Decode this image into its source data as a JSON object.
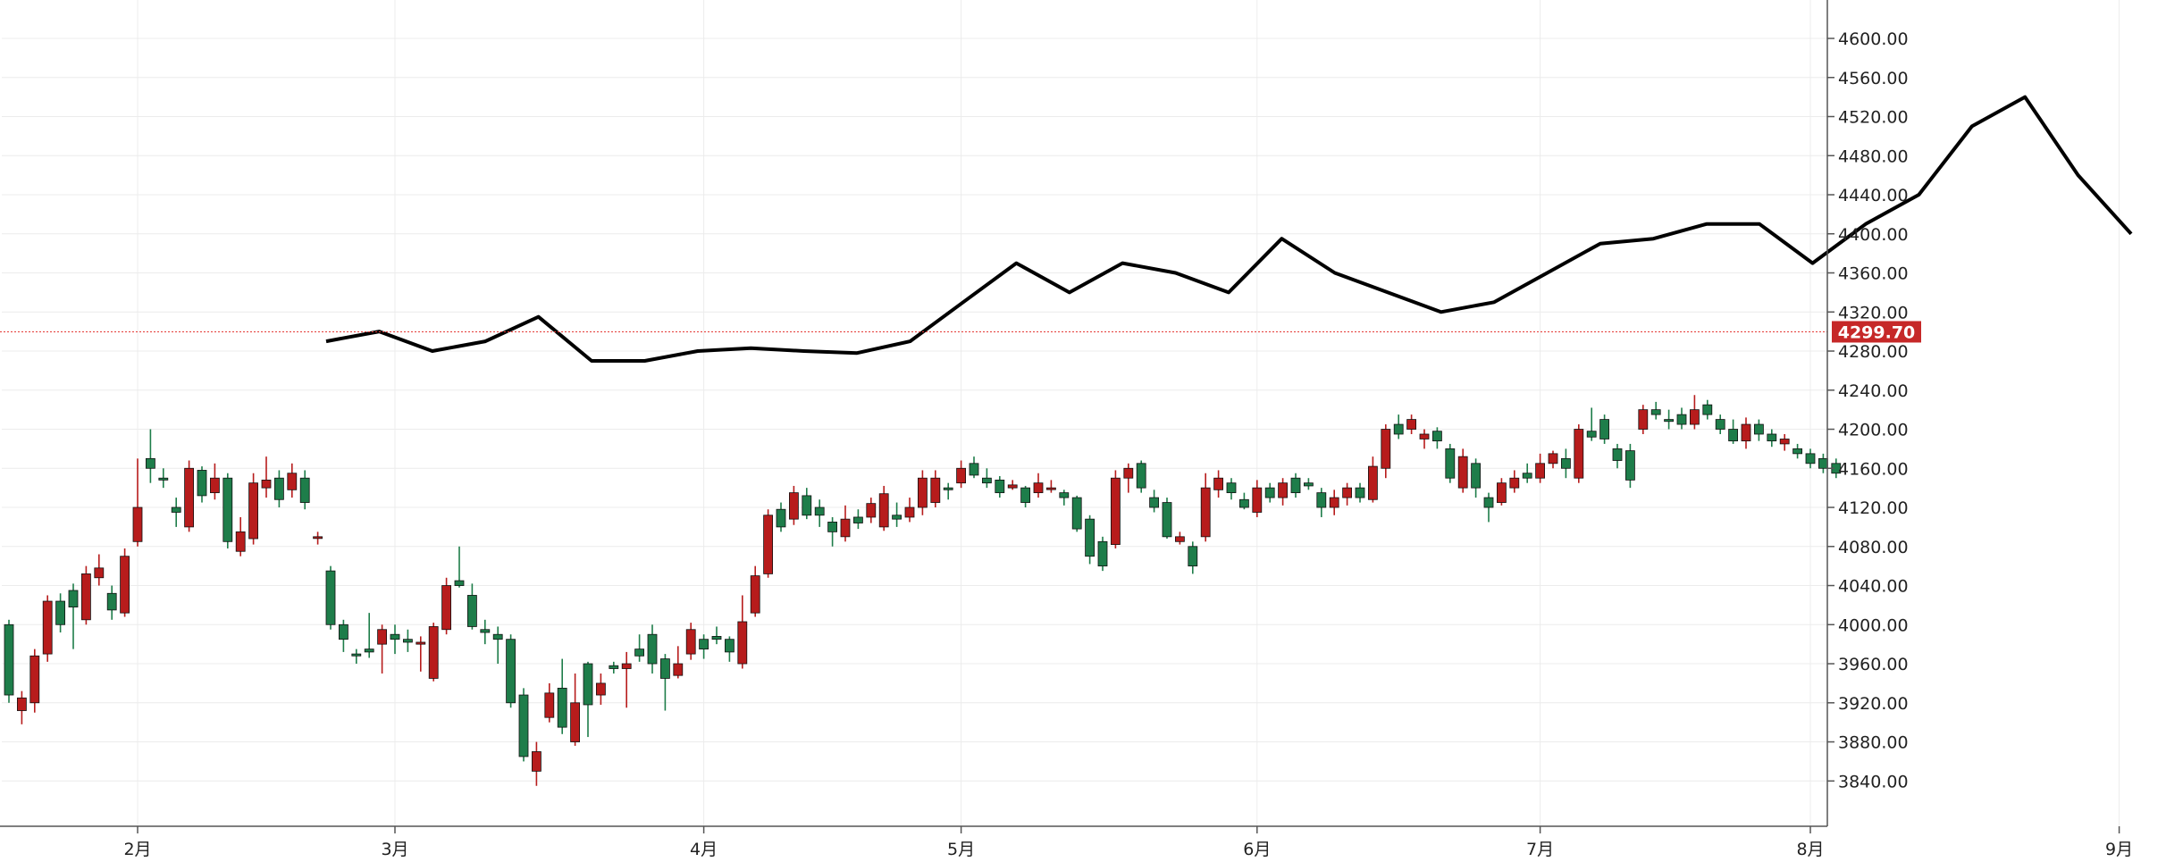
{
  "chart_data": {
    "type": "candlestick",
    "colors": {
      "up": "#b71c1c",
      "down": "#1e7d4a",
      "line": "#000000",
      "current_line": "#e53935",
      "current_badge": "#c62828",
      "grid": "#ececec"
    },
    "grid": true,
    "y_axis_position": "right",
    "ylim": [
      3790,
      4640
    ],
    "y_ticks": [
      3840,
      3880,
      3920,
      3960,
      4000,
      4040,
      4080,
      4120,
      4160,
      4200,
      4240,
      4280,
      4320,
      4360,
      4400,
      4440,
      4480,
      4520,
      4560,
      4600
    ],
    "y_tick_labels": [
      "3840.00",
      "3880.00",
      "3920.00",
      "3960.00",
      "4000.00",
      "4040.00",
      "4080.00",
      "4120.00",
      "4160.00",
      "4200.00",
      "4240.00",
      "4280.00",
      "4320.00",
      "4360.00",
      "4400.00",
      "4440.00",
      "4480.00",
      "4520.00",
      "4560.00",
      "4600.00"
    ],
    "x_ticks": [
      {
        "label": "2月",
        "pos": 10
      },
      {
        "label": "3月",
        "pos": 30
      },
      {
        "label": "4月",
        "pos": 54
      },
      {
        "label": "5月",
        "pos": 74
      },
      {
        "label": "6月",
        "pos": 97
      },
      {
        "label": "7月",
        "pos": 119
      },
      {
        "label": "8月",
        "pos": 140
      },
      {
        "label": "9月",
        "pos": 164
      }
    ],
    "current_value": 4299.7,
    "current_label": "4299.70",
    "candles": [
      [
        4000,
        3928,
        4005,
        3920
      ],
      [
        3912,
        3925,
        3932,
        3898
      ],
      [
        3920,
        3968,
        3975,
        3910
      ],
      [
        3970,
        4024,
        4030,
        3962
      ],
      [
        4024,
        4000,
        4032,
        3992
      ],
      [
        4035,
        4018,
        4042,
        3975
      ],
      [
        4005,
        4052,
        4060,
        4000
      ],
      [
        4048,
        4058,
        4072,
        4040
      ],
      [
        4032,
        4015,
        4040,
        4005
      ],
      [
        4012,
        4070,
        4078,
        4008
      ],
      [
        4085,
        4120,
        4170,
        4080
      ],
      [
        4170,
        4160,
        4200,
        4145
      ],
      [
        4150,
        4148,
        4160,
        4140
      ],
      [
        4120,
        4115,
        4130,
        4100
      ],
      [
        4100,
        4160,
        4168,
        4095
      ],
      [
        4158,
        4132,
        4162,
        4125
      ],
      [
        4135,
        4150,
        4165,
        4128
      ],
      [
        4150,
        4085,
        4155,
        4078
      ],
      [
        4075,
        4095,
        4110,
        4070
      ],
      [
        4088,
        4145,
        4155,
        4082
      ],
      [
        4140,
        4148,
        4172,
        4130
      ],
      [
        4150,
        4128,
        4158,
        4120
      ],
      [
        4138,
        4155,
        4165,
        4130
      ],
      [
        4150,
        4125,
        4158,
        4118
      ],
      [
        4090,
        4090,
        4095,
        4082
      ],
      [
        4055,
        4000,
        4060,
        3995
      ],
      [
        4000,
        3985,
        4005,
        3972
      ],
      [
        3970,
        3968,
        3975,
        3960
      ],
      [
        3975,
        3972,
        4012,
        3966
      ],
      [
        3980,
        3995,
        4000,
        3950
      ],
      [
        3990,
        3985,
        4000,
        3970
      ],
      [
        3985,
        3982,
        3995,
        3972
      ],
      [
        3980,
        3982,
        3988,
        3952
      ],
      [
        3945,
        3998,
        4002,
        3942
      ],
      [
        3995,
        4040,
        4048,
        3990
      ],
      [
        4045,
        4040,
        4080,
        4038
      ],
      [
        4030,
        3998,
        4042,
        3995
      ],
      [
        3995,
        3992,
        4005,
        3980
      ],
      [
        3990,
        3985,
        3998,
        3960
      ],
      [
        3985,
        3920,
        3990,
        3915
      ],
      [
        3928,
        3865,
        3935,
        3860
      ],
      [
        3850,
        3870,
        3880,
        3835
      ],
      [
        3905,
        3930,
        3940,
        3900
      ],
      [
        3935,
        3895,
        3965,
        3888
      ],
      [
        3880,
        3920,
        3950,
        3876
      ],
      [
        3960,
        3918,
        3962,
        3885
      ],
      [
        3928,
        3940,
        3950,
        3918
      ],
      [
        3958,
        3955,
        3962,
        3950
      ],
      [
        3955,
        3960,
        3972,
        3915
      ],
      [
        3975,
        3968,
        3990,
        3962
      ],
      [
        3990,
        3960,
        4000,
        3950
      ],
      [
        3965,
        3945,
        3970,
        3912
      ],
      [
        3948,
        3960,
        3978,
        3945
      ],
      [
        3970,
        3995,
        4002,
        3964
      ],
      [
        3985,
        3975,
        3990,
        3965
      ],
      [
        3988,
        3985,
        3998,
        3980
      ],
      [
        3985,
        3972,
        3988,
        3962
      ],
      [
        3960,
        4003,
        4030,
        3955
      ],
      [
        4012,
        4050,
        4060,
        4008
      ],
      [
        4052,
        4112,
        4118,
        4048
      ],
      [
        4118,
        4100,
        4125,
        4095
      ],
      [
        4108,
        4135,
        4142,
        4102
      ],
      [
        4132,
        4112,
        4140,
        4108
      ],
      [
        4120,
        4112,
        4128,
        4100
      ],
      [
        4105,
        4095,
        4110,
        4080
      ],
      [
        4090,
        4108,
        4122,
        4085
      ],
      [
        4110,
        4104,
        4118,
        4098
      ],
      [
        4110,
        4124,
        4130,
        4104
      ],
      [
        4100,
        4134,
        4142,
        4096
      ],
      [
        4112,
        4108,
        4125,
        4100
      ],
      [
        4110,
        4120,
        4130,
        4105
      ],
      [
        4120,
        4150,
        4158,
        4112
      ],
      [
        4125,
        4150,
        4158,
        4120
      ],
      [
        4140,
        4138,
        4145,
        4128
      ],
      [
        4145,
        4160,
        4168,
        4140
      ],
      [
        4165,
        4153,
        4172,
        4150
      ],
      [
        4150,
        4145,
        4160,
        4140
      ],
      [
        4148,
        4135,
        4152,
        4130
      ],
      [
        4140,
        4143,
        4148,
        4138
      ],
      [
        4140,
        4125,
        4142,
        4120
      ],
      [
        4135,
        4145,
        4155,
        4130
      ],
      [
        4140,
        4140,
        4148,
        4135
      ],
      [
        4135,
        4130,
        4138,
        4122
      ],
      [
        4130,
        4098,
        4132,
        4095
      ],
      [
        4108,
        4070,
        4112,
        4062
      ],
      [
        4085,
        4060,
        4090,
        4055
      ],
      [
        4082,
        4150,
        4158,
        4078
      ],
      [
        4150,
        4160,
        4165,
        4135
      ],
      [
        4165,
        4140,
        4168,
        4135
      ],
      [
        4130,
        4120,
        4138,
        4115
      ],
      [
        4125,
        4090,
        4130,
        4088
      ],
      [
        4085,
        4090,
        4095,
        4082
      ],
      [
        4080,
        4060,
        4085,
        4052
      ],
      [
        4090,
        4140,
        4155,
        4085
      ],
      [
        4138,
        4150,
        4158,
        4130
      ],
      [
        4145,
        4135,
        4150,
        4128
      ],
      [
        4128,
        4120,
        4135,
        4118
      ],
      [
        4115,
        4140,
        4148,
        4110
      ],
      [
        4140,
        4130,
        4145,
        4125
      ],
      [
        4130,
        4145,
        4150,
        4122
      ],
      [
        4150,
        4135,
        4155,
        4130
      ],
      [
        4145,
        4142,
        4150,
        4138
      ],
      [
        4135,
        4120,
        4140,
        4110
      ],
      [
        4120,
        4130,
        4138,
        4112
      ],
      [
        4130,
        4140,
        4145,
        4122
      ],
      [
        4140,
        4130,
        4145,
        4125
      ],
      [
        4128,
        4162,
        4172,
        4125
      ],
      [
        4160,
        4200,
        4205,
        4150
      ],
      [
        4205,
        4195,
        4215,
        4190
      ],
      [
        4200,
        4210,
        4215,
        4195
      ],
      [
        4190,
        4195,
        4200,
        4180
      ],
      [
        4198,
        4188,
        4202,
        4180
      ],
      [
        4180,
        4150,
        4185,
        4145
      ],
      [
        4140,
        4172,
        4180,
        4135
      ],
      [
        4165,
        4140,
        4170,
        4130
      ],
      [
        4130,
        4120,
        4135,
        4105
      ],
      [
        4125,
        4145,
        4150,
        4122
      ],
      [
        4140,
        4150,
        4158,
        4135
      ],
      [
        4155,
        4150,
        4165,
        4145
      ],
      [
        4150,
        4165,
        4175,
        4145
      ],
      [
        4165,
        4175,
        4178,
        4160
      ],
      [
        4170,
        4160,
        4180,
        4150
      ],
      [
        4150,
        4200,
        4205,
        4145
      ],
      [
        4198,
        4192,
        4222,
        4188
      ],
      [
        4210,
        4190,
        4215,
        4185
      ],
      [
        4180,
        4168,
        4185,
        4160
      ],
      [
        4178,
        4148,
        4185,
        4140
      ],
      [
        4200,
        4220,
        4225,
        4195
      ],
      [
        4220,
        4215,
        4228,
        4210
      ],
      [
        4210,
        4208,
        4220,
        4200
      ],
      [
        4215,
        4205,
        4222,
        4200
      ],
      [
        4205,
        4220,
        4235,
        4200
      ],
      [
        4225,
        4215,
        4230,
        4210
      ],
      [
        4210,
        4200,
        4215,
        4195
      ],
      [
        4200,
        4188,
        4210,
        4185
      ],
      [
        4188,
        4205,
        4212,
        4180
      ],
      [
        4205,
        4195,
        4210,
        4188
      ],
      [
        4195,
        4188,
        4200,
        4182
      ],
      [
        4185,
        4190,
        4195,
        4178
      ],
      [
        4180,
        4175,
        4185,
        4170
      ],
      [
        4175,
        4165,
        4180,
        4160
      ],
      [
        4170,
        4160,
        4175,
        4155
      ],
      [
        4165,
        4155,
        4170,
        4150
      ]
    ],
    "overlay_line": [
      4290,
      4300,
      4280,
      4290,
      4315,
      4270,
      4270,
      4280,
      4283,
      4280,
      4278,
      4290,
      4330,
      4370,
      4340,
      4370,
      4360,
      4340,
      4395,
      4360,
      4340,
      4320,
      4330,
      4360,
      4390,
      4395,
      4410,
      4410,
      4370,
      4410,
      4440,
      4510,
      4540,
      4460,
      4400
    ]
  }
}
